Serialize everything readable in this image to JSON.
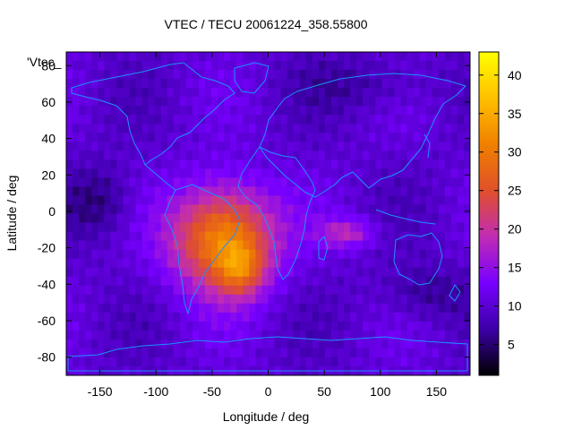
{
  "chart_data": {
    "type": "heatmap",
    "title": "VTEC / TECU 20061224_358.55800",
    "xlabel": "Longitude / deg",
    "ylabel": "Latitude / deg",
    "key_label": "'Vtec_",
    "xlim": [
      -180,
      180
    ],
    "ylim": [
      -90,
      87.5
    ],
    "x_ticks": [
      -150,
      -100,
      -50,
      0,
      50,
      100,
      150
    ],
    "y_ticks": [
      -80,
      -60,
      -40,
      -20,
      0,
      20,
      40,
      60,
      80
    ],
    "colorbar": {
      "range": [
        1,
        43
      ],
      "ticks": [
        5,
        10,
        15,
        20,
        25,
        30,
        35,
        40
      ],
      "stops": [
        "#000000",
        "#3c00a8",
        "#7800ff",
        "#c02cb4",
        "#e0502a",
        "#f08000",
        "#ffc000",
        "#ffff00"
      ]
    },
    "grid": false,
    "coastline_color": "#1e90ff"
  }
}
